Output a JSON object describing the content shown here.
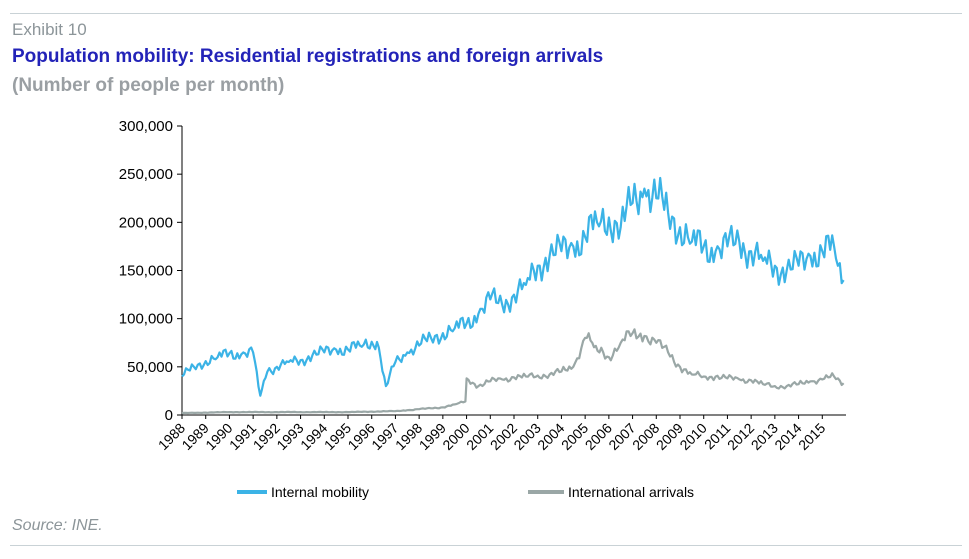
{
  "header": {
    "exhibit": "Exhibit 10",
    "title": "Population mobility: Residential registrations and foreign arrivals",
    "subtitle": "(Number of people per month)"
  },
  "footer": {
    "source": "Source: INE."
  },
  "colors": {
    "internal": "#3bb3e6",
    "international": "#9aa7a6",
    "title": "#2323b8"
  },
  "chart_data": {
    "type": "line",
    "title": "Population mobility: Residential registrations and foreign arrivals",
    "subtitle": "(Number of people per month)",
    "ylim": [
      0,
      300000
    ],
    "yticks": [
      "0",
      "50,000",
      "100,000",
      "150,000",
      "200,000",
      "250,000",
      "300,000"
    ],
    "x_tick_labels": [
      "1988",
      "1989",
      "1990",
      "1991",
      "1992",
      "1993",
      "1994",
      "1995",
      "1996",
      "1997",
      "1998",
      "1999",
      "2000",
      "2001",
      "2002",
      "2003",
      "2004",
      "2005",
      "2006",
      "2007",
      "2008",
      "2009",
      "2010",
      "2011",
      "2012",
      "2013",
      "2014",
      "2015"
    ],
    "x_range": [
      1988,
      2016
    ],
    "grid": false,
    "legend_position": "bottom",
    "series": [
      {
        "name": "Internal mobility",
        "color": "#3bb3e6",
        "x": [
          1988.0,
          1988.5,
          1989.0,
          1989.5,
          1990.0,
          1990.5,
          1991.0,
          1991.3,
          1991.6,
          1992.0,
          1992.5,
          1993.0,
          1993.5,
          1994.0,
          1994.5,
          1995.0,
          1995.5,
          1996.0,
          1996.3,
          1996.6,
          1997.0,
          1997.5,
          1998.0,
          1998.5,
          1999.0,
          1999.5,
          2000.0,
          2000.5,
          2001.0,
          2001.5,
          2002.0,
          2002.5,
          2003.0,
          2003.5,
          2004.0,
          2004.5,
          2005.0,
          2005.5,
          2006.0,
          2006.5,
          2007.0,
          2007.5,
          2008.0,
          2008.5,
          2009.0,
          2009.5,
          2010.0,
          2010.5,
          2011.0,
          2011.5,
          2012.0,
          2012.5,
          2013.0,
          2013.5,
          2014.0,
          2014.5,
          2015.0,
          2015.5,
          2015.9
        ],
        "values": [
          40000,
          50000,
          56000,
          60000,
          64000,
          63000,
          65000,
          20000,
          45000,
          50000,
          55000,
          57000,
          62000,
          65000,
          68000,
          68000,
          72000,
          76000,
          70000,
          30000,
          55000,
          65000,
          72000,
          80000,
          85000,
          90000,
          95000,
          105000,
          120000,
          115000,
          125000,
          135000,
          155000,
          165000,
          170000,
          175000,
          185000,
          200000,
          205000,
          195000,
          220000,
          235000,
          225000,
          210000,
          195000,
          180000,
          175000,
          170000,
          175000,
          180000,
          170000,
          160000,
          155000,
          150000,
          155000,
          165000,
          170000,
          175000,
          140000
        ]
      },
      {
        "name": "International arrivals",
        "color": "#9aa7a6",
        "x": [
          1988.0,
          1989.0,
          1990.0,
          1991.0,
          1992.0,
          1993.0,
          1994.0,
          1995.0,
          1996.0,
          1997.0,
          1997.5,
          1998.0,
          1998.5,
          1999.0,
          1999.5,
          1999.95,
          2000.0,
          2000.5,
          2001.0,
          2001.5,
          2002.0,
          2002.5,
          2003.0,
          2003.5,
          2004.0,
          2004.5,
          2005.0,
          2005.3,
          2005.6,
          2006.0,
          2006.5,
          2007.0,
          2007.5,
          2008.0,
          2008.5,
          2009.0,
          2009.5,
          2010.0,
          2010.5,
          2011.0,
          2011.5,
          2012.0,
          2012.5,
          2013.0,
          2013.5,
          2014.0,
          2014.5,
          2015.0,
          2015.5,
          2015.9
        ],
        "values": [
          2000,
          2500,
          3000,
          3000,
          3000,
          3000,
          3000,
          3000,
          3500,
          4000,
          5000,
          6000,
          7000,
          8000,
          11000,
          14000,
          38000,
          30000,
          35000,
          37000,
          39000,
          40000,
          41000,
          42000,
          45000,
          50000,
          80000,
          75000,
          65000,
          60000,
          75000,
          85000,
          82000,
          75000,
          65000,
          50000,
          42000,
          40000,
          40000,
          38000,
          37000,
          36000,
          32000,
          30000,
          30000,
          32000,
          35000,
          37000,
          40000,
          33000
        ]
      }
    ]
  }
}
